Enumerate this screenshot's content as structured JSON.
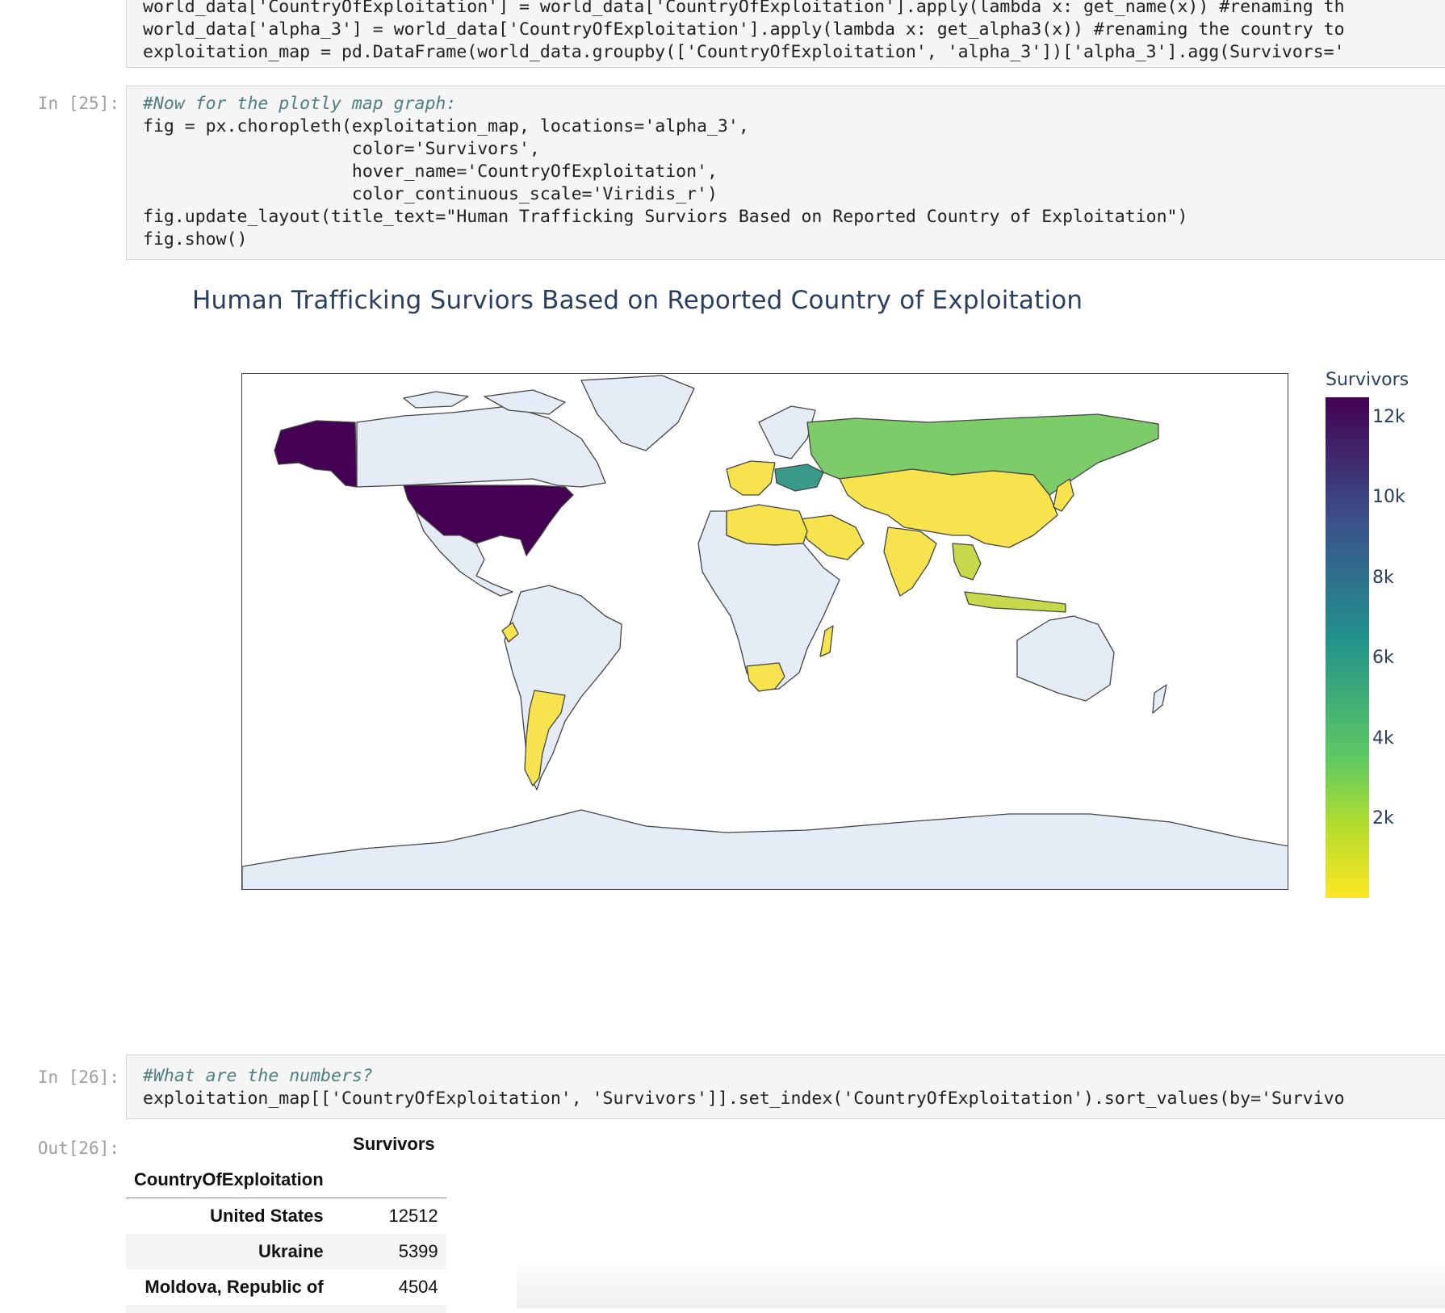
{
  "cell_top": {
    "prompt": "",
    "lines": [
      "world_data['CountryOfExploitation'] = world_data['CountryOfExploitation'].apply(lambda x: get_name(x)) #renaming th",
      "world_data['alpha_3'] = world_data['CountryOfExploitation'].apply(lambda x: get_alpha3(x)) #renaming the country to",
      "exploitation_map = pd.DataFrame(world_data.groupby(['CountryOfExploitation', 'alpha_3'])['alpha_3'].agg(Survivors='"
    ]
  },
  "cell_25": {
    "prompt": "In [25]:",
    "lines": [
      "#Now for the plotly map graph:",
      "fig = px.choropleth(exploitation_map, locations='alpha_3',",
      "                    color='Survivors',",
      "                    hover_name='CountryOfExploitation',",
      "                    color_continuous_scale='Viridis_r')",
      "fig.update_layout(title_text=\"Human Trafficking Surviors Based on Reported Country of Exploitation\")",
      "fig.show()"
    ]
  },
  "map": {
    "title": "Human Trafficking Surviors Based on Reported Country of Exploitation",
    "colorbar_title": "Survivors",
    "colorbar_ticks": [
      "12k",
      "10k",
      "8k",
      "6k",
      "4k",
      "2k"
    ],
    "colors": {
      "land": "#e5ecf6",
      "border": "#444444",
      "usa": "#440154",
      "ukraine": "#3a9a8a",
      "russia": "#7ccc6a",
      "yellow": "#f6e34e",
      "yellowgreen": "#c6d94a"
    }
  },
  "cell_26": {
    "prompt": "In [26]:",
    "lines": [
      "#What are the numbers?",
      "exploitation_map[['CountryOfExploitation', 'Survivors']].set_index('CountryOfExploitation').sort_values(by='Survivo"
    ]
  },
  "out_26": {
    "prompt": "Out[26]:",
    "column_header": "Survivors",
    "index_name": "CountryOfExploitation",
    "rows": [
      {
        "country": "United States",
        "survivors": "12512"
      },
      {
        "country": "Ukraine",
        "survivors": "5399"
      },
      {
        "country": "Moldova, Republic of",
        "survivors": "4504"
      }
    ]
  }
}
